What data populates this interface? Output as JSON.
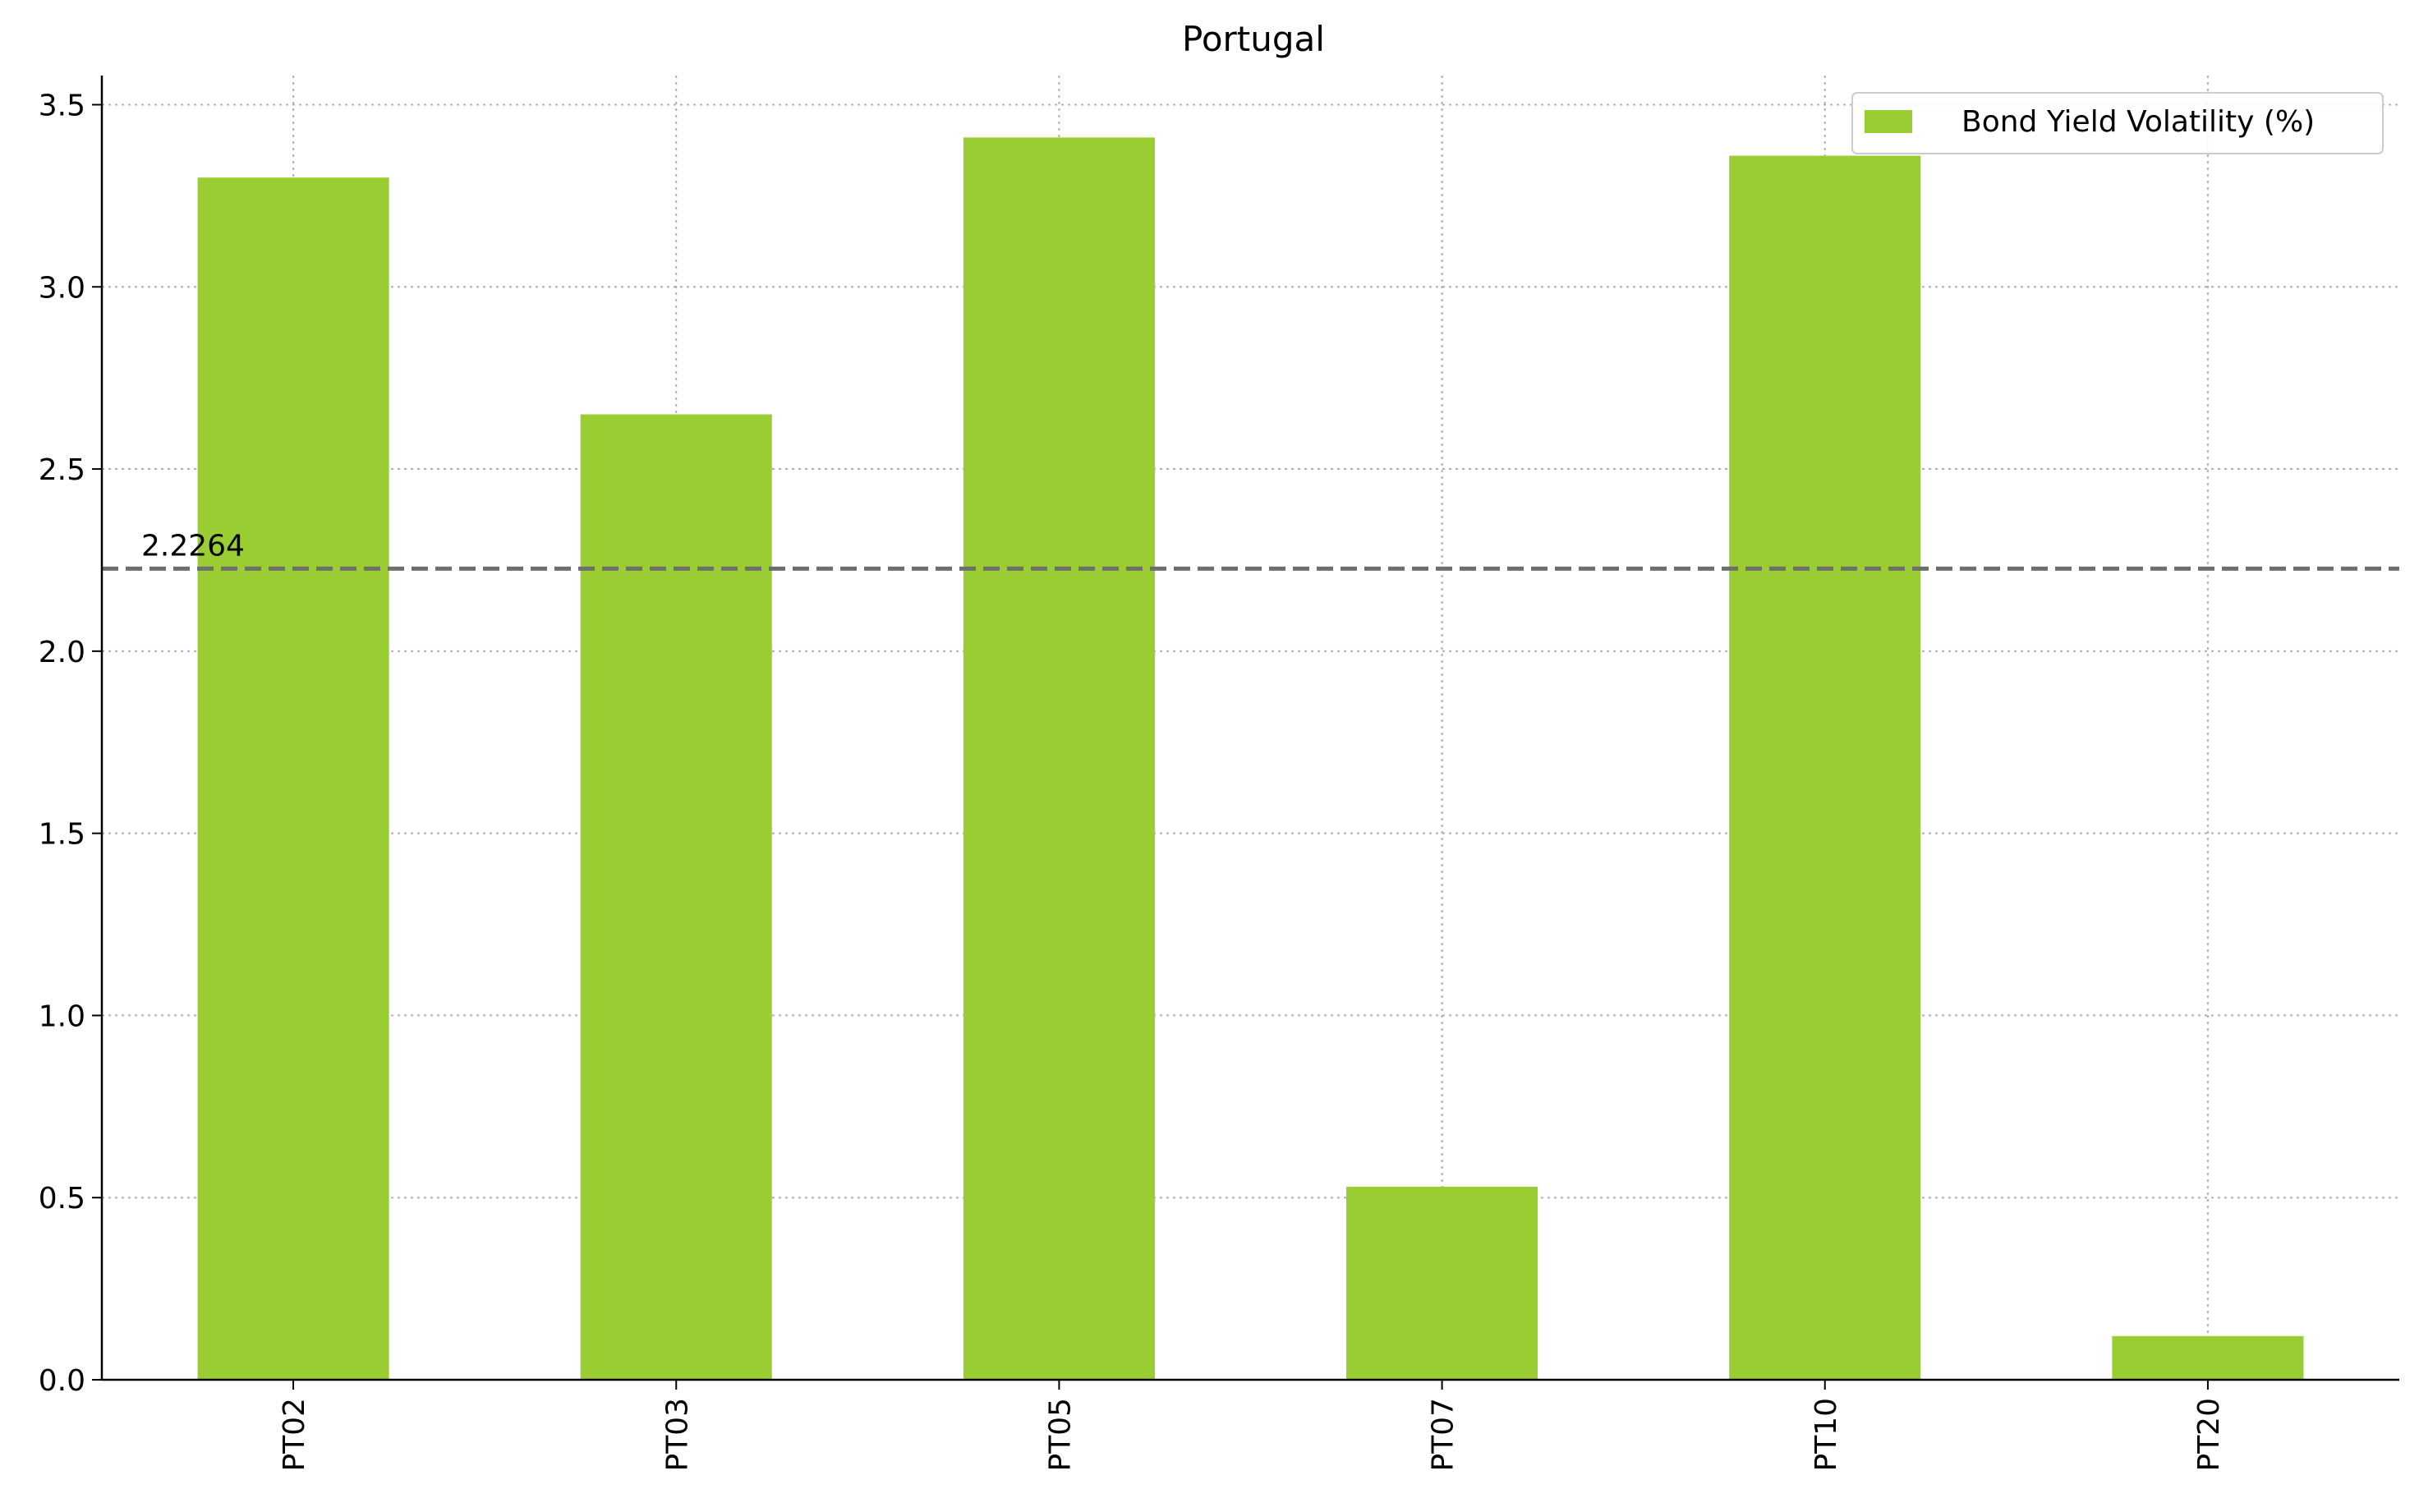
{
  "chart_data": {
    "type": "bar",
    "title": "Portugal",
    "xlabel": "",
    "ylabel": "",
    "categories": [
      "PT02",
      "PT03",
      "PT05",
      "PT07",
      "PT10",
      "PT20"
    ],
    "series": [
      {
        "name": "Bond Yield Volatility (%)",
        "values": [
          3.3,
          2.65,
          3.41,
          0.53,
          3.36,
          0.12
        ],
        "color": "#9acd32"
      }
    ],
    "ylim": [
      0,
      3.58
    ],
    "yticks": [
      "0.0",
      "0.5",
      "1.0",
      "1.5",
      "2.0",
      "2.5",
      "3.0",
      "3.5"
    ],
    "reference_line": {
      "value": 2.2264,
      "label": "2.2264",
      "color": "#6e6e6e",
      "style": "dashed"
    },
    "grid": true,
    "legend_position": "top-right",
    "x_tick_rotation": "vertical"
  }
}
